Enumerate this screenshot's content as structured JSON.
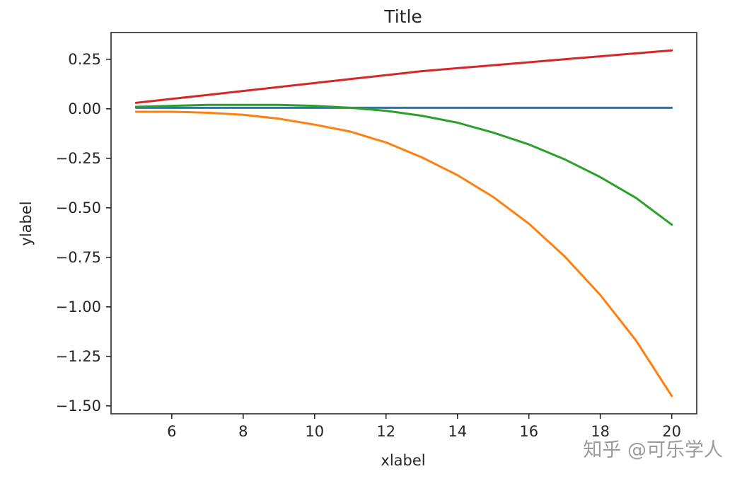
{
  "chart_data": {
    "type": "line",
    "title": "Title",
    "xlabel": "xlabel",
    "ylabel": "ylabel",
    "xlim": [
      4.3,
      20.7
    ],
    "ylim": [
      -1.54,
      0.385
    ],
    "xticks": [
      6,
      8,
      10,
      12,
      14,
      16,
      18,
      20
    ],
    "xtick_labels": [
      "6",
      "8",
      "10",
      "12",
      "14",
      "16",
      "18",
      "20"
    ],
    "yticks": [
      0.25,
      0.0,
      -0.25,
      -0.5,
      -0.75,
      -1.0,
      -1.25,
      -1.5
    ],
    "ytick_labels": [
      "0.25",
      "0.00",
      "−0.25",
      "−0.50",
      "−0.75",
      "−1.00",
      "−1.25",
      "−1.50"
    ],
    "grid": false,
    "x": [
      5,
      6,
      7,
      8,
      9,
      10,
      11,
      12,
      13,
      14,
      15,
      16,
      17,
      18,
      19,
      20
    ],
    "series": [
      {
        "color": "#1f77b4",
        "values": [
          0.005,
          0.005,
          0.005,
          0.005,
          0.005,
          0.005,
          0.005,
          0.005,
          0.005,
          0.005,
          0.005,
          0.005,
          0.005,
          0.005,
          0.005,
          0.005
        ]
      },
      {
        "color": "#ff7f0e",
        "values": [
          -0.015,
          -0.015,
          -0.02,
          -0.03,
          -0.05,
          -0.08,
          -0.115,
          -0.17,
          -0.245,
          -0.335,
          -0.445,
          -0.58,
          -0.745,
          -0.94,
          -1.17,
          -1.45
        ]
      },
      {
        "color": "#2ca02c",
        "values": [
          0.01,
          0.015,
          0.02,
          0.02,
          0.02,
          0.015,
          0.005,
          -0.01,
          -0.035,
          -0.07,
          -0.12,
          -0.18,
          -0.255,
          -0.345,
          -0.45,
          -0.585
        ]
      },
      {
        "color": "#d62728",
        "values": [
          0.03,
          0.05,
          0.07,
          0.09,
          0.11,
          0.13,
          0.15,
          0.17,
          0.19,
          0.205,
          0.22,
          0.235,
          0.25,
          0.265,
          0.28,
          0.295
        ]
      }
    ]
  },
  "watermark": "知乎 @可乐学人"
}
